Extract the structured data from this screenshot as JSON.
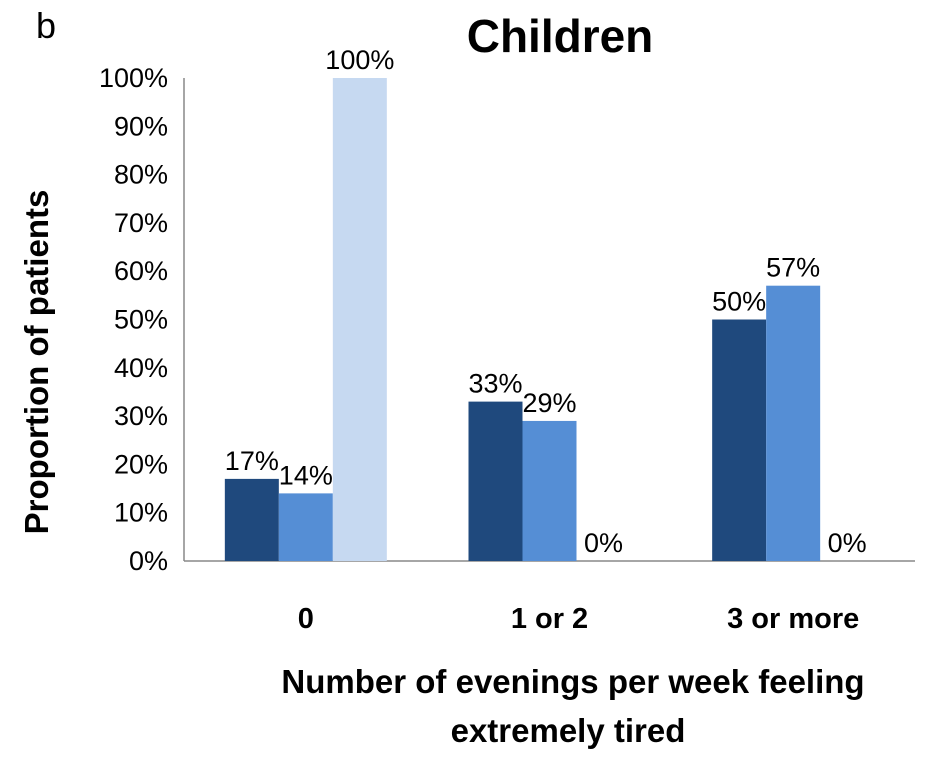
{
  "panel_letter": "b",
  "chart_data": {
    "type": "bar",
    "title": "Children",
    "ylabel": "Proportion of patients",
    "xlabel_lines": [
      "Number of evenings per week feeling",
      "extremely tired"
    ],
    "categories": [
      "0",
      "1 or 2",
      "3 or more"
    ],
    "ylim": [
      0,
      100
    ],
    "y_ticks": [
      "0%",
      "10%",
      "20%",
      "30%",
      "40%",
      "50%",
      "60%",
      "70%",
      "80%",
      "90%",
      "100%"
    ],
    "grid": false,
    "legend": "none",
    "series": [
      {
        "values": [
          17,
          33,
          50
        ],
        "labels": [
          "17%",
          "33%",
          "50%"
        ],
        "color": "#1f497d"
      },
      {
        "values": [
          14,
          29,
          57
        ],
        "labels": [
          "14%",
          "29%",
          "57%"
        ],
        "color": "#558ed5"
      },
      {
        "values": [
          100,
          0,
          0
        ],
        "labels": [
          "100%",
          "0%",
          "0%"
        ],
        "color": "#c6d9f1"
      }
    ]
  }
}
